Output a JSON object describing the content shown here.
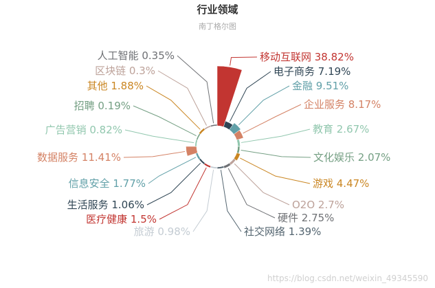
{
  "chart_data": {
    "type": "pie",
    "variant": "nightingale-rose",
    "title": "行业领域",
    "subtitle": "南丁格尔图",
    "slices": [
      {
        "name": "移动互联网",
        "value": 38.82,
        "color": "#c23531"
      },
      {
        "name": "电子商务",
        "value": 7.19,
        "color": "#2f4554"
      },
      {
        "name": "金融",
        "value": 9.51,
        "color": "#61a0a8"
      },
      {
        "name": "企业服务",
        "value": 8.17,
        "color": "#d48265"
      },
      {
        "name": "教育",
        "value": 2.67,
        "color": "#91c7ae"
      },
      {
        "name": "文化娱乐",
        "value": 2.07,
        "color": "#749f83"
      },
      {
        "name": "游戏",
        "value": 4.47,
        "color": "#ca8622"
      },
      {
        "name": "O2O",
        "value": 2.7,
        "color": "#bda29a"
      },
      {
        "name": "硬件",
        "value": 2.75,
        "color": "#6e7074"
      },
      {
        "name": "社交网络",
        "value": 1.39,
        "color": "#546570"
      },
      {
        "name": "旅游",
        "value": 0.98,
        "color": "#c4ccd3"
      },
      {
        "name": "医疗健康",
        "value": 1.5,
        "color": "#c23531"
      },
      {
        "name": "生活服务",
        "value": 1.06,
        "color": "#2f4554"
      },
      {
        "name": "信息安全",
        "value": 1.77,
        "color": "#61a0a8"
      },
      {
        "name": "数据服务",
        "value": 11.41,
        "color": "#d48265"
      },
      {
        "name": "广告营销",
        "value": 0.82,
        "color": "#91c7ae"
      },
      {
        "name": "招聘",
        "value": 0.19,
        "color": "#749f83"
      },
      {
        "name": "其他",
        "value": 1.88,
        "color": "#ca8622"
      },
      {
        "name": "区块链",
        "value": 0.3,
        "color": "#bda29a"
      },
      {
        "name": "人工智能",
        "value": 0.35,
        "color": "#6e7074"
      }
    ]
  },
  "watermark": "https://blog.csdn.net/weixin_49345590"
}
